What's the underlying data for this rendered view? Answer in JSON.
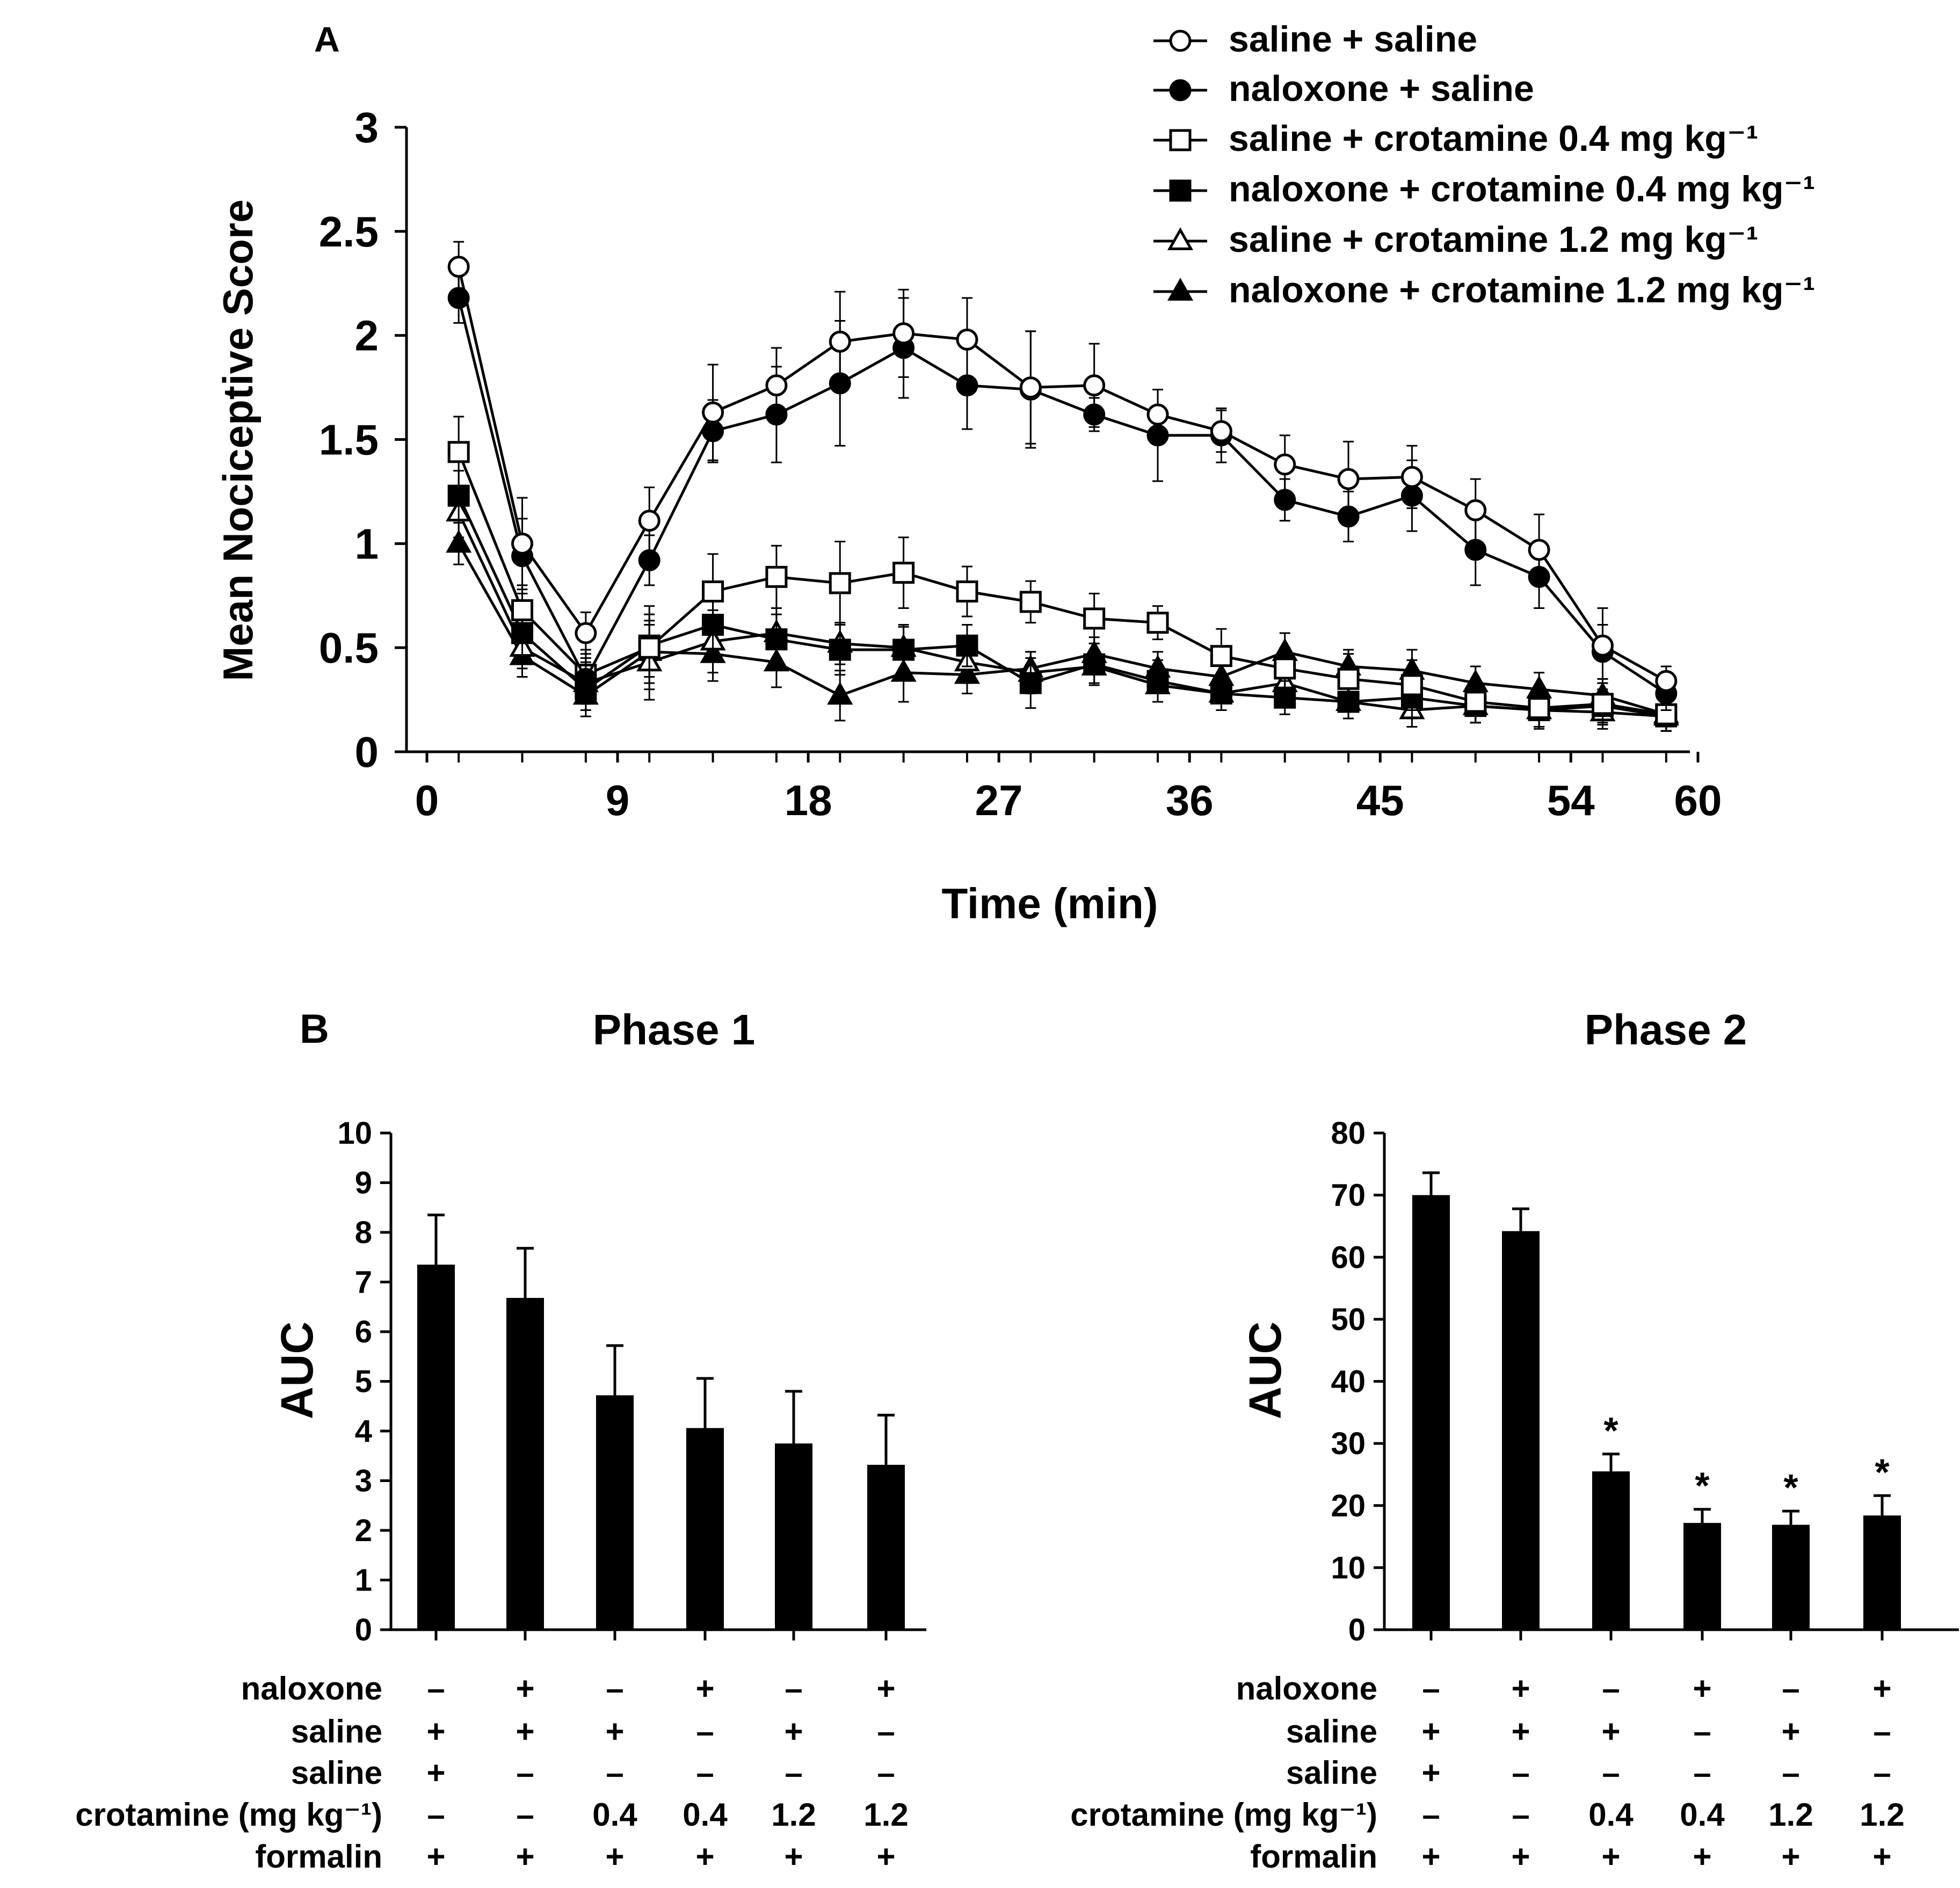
{
  "chart_data": [
    {
      "type": "line",
      "panel_label": "A",
      "xlabel": "Time (min)",
      "ylabel": "Mean Nociceptive Score",
      "xlim": [
        0,
        60
      ],
      "ylim": [
        0,
        3
      ],
      "x_ticks": [
        "0",
        "9",
        "18",
        "27",
        "36",
        "45",
        "54",
        "60"
      ],
      "y_ticks": [
        "0",
        "0.5",
        "1",
        "1.5",
        "2",
        "2.5",
        "3"
      ],
      "x": [
        1.5,
        4.5,
        7.5,
        10.5,
        13.5,
        16.5,
        19.5,
        22.5,
        25.5,
        28.5,
        31.5,
        34.5,
        37.5,
        40.5,
        43.5,
        46.5,
        49.5,
        52.5,
        55.5,
        58.5
      ],
      "series": [
        {
          "name": "saline + saline",
          "marker": "open-circle",
          "values": [
            2.33,
            1.0,
            0.57,
            1.11,
            1.63,
            1.76,
            1.97,
            2.01,
            1.98,
            1.75,
            1.76,
            1.62,
            1.54,
            1.38,
            1.31,
            1.32,
            1.16,
            0.97,
            0.51,
            0.34
          ],
          "errors": [
            0.12,
            0.22,
            0.1,
            0.16,
            0.23,
            0.18,
            0.24,
            0.21,
            0.2,
            0.27,
            0.2,
            0.12,
            0.1,
            0.14,
            0.18,
            0.15,
            0.15,
            0.17,
            0.18,
            0.07
          ]
        },
        {
          "name": "naloxone + saline",
          "marker": "filled-circle",
          "values": [
            2.18,
            0.94,
            0.35,
            0.92,
            1.54,
            1.62,
            1.77,
            1.94,
            1.76,
            1.74,
            1.62,
            1.52,
            1.52,
            1.21,
            1.13,
            1.23,
            0.97,
            0.84,
            0.48,
            0.28
          ],
          "errors": [
            0.12,
            0.18,
            0.1,
            0.12,
            0.15,
            0.23,
            0.3,
            0.24,
            0.21,
            0.28,
            0.08,
            0.22,
            0.13,
            0.1,
            0.12,
            0.17,
            0.17,
            0.15,
            0.13,
            0.08
          ]
        },
        {
          "name": "saline + crotamine 0.4 mg kg⁻¹",
          "marker": "open-square",
          "values": [
            1.44,
            0.68,
            0.37,
            0.5,
            0.77,
            0.84,
            0.81,
            0.86,
            0.77,
            0.72,
            0.64,
            0.62,
            0.46,
            0.4,
            0.35,
            0.32,
            0.24,
            0.21,
            0.23,
            0.18
          ],
          "errors": [
            0.17,
            0.12,
            0.12,
            0.2,
            0.18,
            0.15,
            0.2,
            0.17,
            0.12,
            0.1,
            0.12,
            0.08,
            0.13,
            0.1,
            0.12,
            0.12,
            0.1,
            0.1,
            0.1,
            0.08
          ]
        },
        {
          "name": "naloxone + crotamine 0.4 mg kg⁻¹",
          "marker": "filled-square",
          "values": [
            1.23,
            0.57,
            0.3,
            0.51,
            0.61,
            0.54,
            0.49,
            0.49,
            0.51,
            0.33,
            0.42,
            0.34,
            0.28,
            0.26,
            0.24,
            0.26,
            0.22,
            0.2,
            0.22,
            0.17
          ],
          "errors": [
            0.12,
            0.12,
            0.1,
            0.15,
            0.15,
            0.12,
            0.12,
            0.12,
            0.1,
            0.12,
            0.1,
            0.1,
            0.08,
            0.08,
            0.08,
            0.1,
            0.08,
            0.08,
            0.08,
            0.07
          ]
        },
        {
          "name": "saline + crotamine 1.2 mg kg⁻¹",
          "marker": "open-triangle",
          "values": [
            1.15,
            0.5,
            0.33,
            0.43,
            0.53,
            0.57,
            0.52,
            0.5,
            0.43,
            0.38,
            0.41,
            0.32,
            0.28,
            0.33,
            0.24,
            0.2,
            0.22,
            0.2,
            0.19,
            0.17
          ],
          "errors": [
            0.12,
            0.1,
            0.1,
            0.18,
            0.15,
            0.12,
            0.1,
            0.1,
            0.1,
            0.1,
            0.08,
            0.08,
            0.08,
            0.1,
            0.08,
            0.08,
            0.08,
            0.08,
            0.08,
            0.07
          ]
        },
        {
          "name": "naloxone + crotamine 1.2 mg kg⁻¹",
          "marker": "filled-triangle",
          "values": [
            1.0,
            0.46,
            0.27,
            0.48,
            0.47,
            0.43,
            0.27,
            0.38,
            0.37,
            0.4,
            0.47,
            0.4,
            0.36,
            0.48,
            0.41,
            0.39,
            0.33,
            0.3,
            0.27,
            0.18
          ],
          "errors": [
            0.1,
            0.1,
            0.1,
            0.15,
            0.13,
            0.12,
            0.12,
            0.14,
            0.09,
            0.08,
            0.08,
            0.08,
            0.08,
            0.09,
            0.08,
            0.1,
            0.08,
            0.08,
            0.08,
            0.08
          ]
        }
      ]
    },
    {
      "type": "bar",
      "panel_label": "B",
      "title": "Phase 1",
      "ylabel": "AUC",
      "ylim": [
        0,
        10
      ],
      "y_ticks": [
        "0",
        "1",
        "2",
        "3",
        "4",
        "5",
        "6",
        "7",
        "8",
        "9",
        "10"
      ],
      "values": [
        7.35,
        6.68,
        4.72,
        4.06,
        3.75,
        3.32
      ],
      "errors": [
        1.0,
        1.0,
        1.0,
        1.0,
        1.05,
        1.0
      ],
      "significance": [
        "",
        "",
        "",
        "",
        "",
        ""
      ]
    },
    {
      "type": "bar",
      "title": "Phase 2",
      "ylabel": "AUC",
      "ylim": [
        0,
        80
      ],
      "y_ticks": [
        "0",
        "10",
        "20",
        "30",
        "40",
        "50",
        "60",
        "70",
        "80"
      ],
      "values": [
        70.0,
        64.2,
        25.5,
        17.2,
        16.9,
        18.4
      ],
      "errors": [
        3.6,
        3.6,
        2.8,
        2.2,
        2.2,
        3.2
      ],
      "significance": [
        "",
        "",
        "*",
        "*",
        "*",
        "*"
      ]
    }
  ],
  "treatment_table": {
    "rows": [
      {
        "label": "naloxone",
        "values": [
          "–",
          "+",
          "–",
          "+",
          "–",
          "+"
        ]
      },
      {
        "label": "saline",
        "values": [
          "+",
          "+",
          "+",
          "–",
          "+",
          "–"
        ]
      },
      {
        "label": "saline",
        "values": [
          "+",
          "–",
          "–",
          "–",
          "–",
          "–"
        ]
      },
      {
        "label": "crotamine (mg kg⁻¹)",
        "values": [
          "–",
          "–",
          "0.4",
          "0.4",
          "1.2",
          "1.2"
        ]
      },
      {
        "label": "formalin",
        "values": [
          "+",
          "+",
          "+",
          "+",
          "+",
          "+"
        ]
      }
    ]
  }
}
